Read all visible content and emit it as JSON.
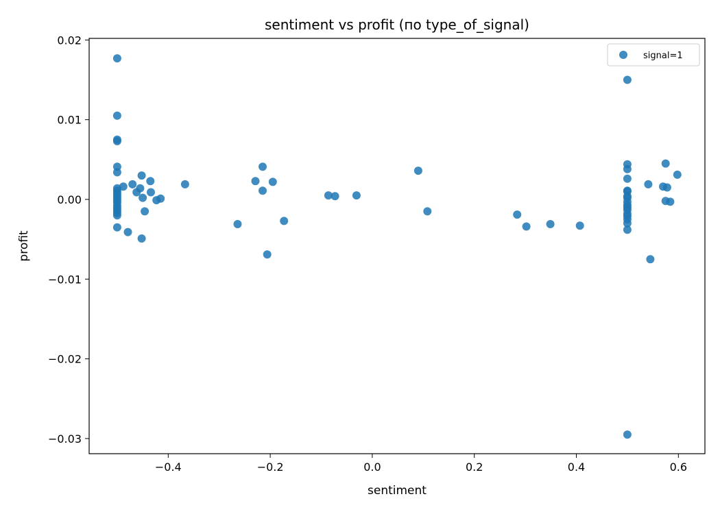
{
  "chart_data": {
    "type": "scatter",
    "title": "sentiment vs profit (по type_of_signal)",
    "xlabel": "sentiment",
    "ylabel": "profit",
    "xlim": [
      -0.555,
      0.652
    ],
    "ylim": [
      -0.0319,
      0.0202
    ],
    "x_ticks": [
      -0.4,
      -0.2,
      0.0,
      0.2,
      0.4,
      0.6
    ],
    "x_tick_labels": [
      "−0.4",
      "−0.2",
      "0.0",
      "0.2",
      "0.4",
      "0.6"
    ],
    "y_ticks": [
      -0.03,
      -0.02,
      -0.01,
      0.0,
      0.01,
      0.02
    ],
    "y_tick_labels": [
      "−0.03",
      "−0.02",
      "−0.01",
      "0.00",
      "0.01",
      "0.02"
    ],
    "grid": false,
    "legend_position": "top-right",
    "colors": {
      "series": "#1f77b4"
    },
    "series": [
      {
        "name": "signal=1",
        "points": [
          [
            -0.5,
            0.0177
          ],
          [
            -0.5,
            0.0105
          ],
          [
            -0.5,
            0.0075
          ],
          [
            -0.5,
            0.0073
          ],
          [
            -0.5,
            0.0041
          ],
          [
            -0.5,
            0.0034
          ],
          [
            -0.5,
            0.0014
          ],
          [
            -0.5,
            0.0011
          ],
          [
            -0.5,
            0.0008
          ],
          [
            -0.5,
            0.0005
          ],
          [
            -0.5,
            0.0002
          ],
          [
            -0.5,
            -0.0001
          ],
          [
            -0.5,
            -0.0004
          ],
          [
            -0.5,
            -0.0008
          ],
          [
            -0.5,
            -0.0011
          ],
          [
            -0.5,
            -0.0014
          ],
          [
            -0.5,
            -0.0017
          ],
          [
            -0.5,
            -0.002
          ],
          [
            -0.5,
            -0.0035
          ],
          [
            -0.488,
            0.0016
          ],
          [
            -0.479,
            -0.0041
          ],
          [
            -0.47,
            0.0019
          ],
          [
            -0.462,
            0.0009
          ],
          [
            -0.455,
            0.0014
          ],
          [
            -0.452,
            0.003
          ],
          [
            -0.45,
            0.0002
          ],
          [
            -0.452,
            -0.0049
          ],
          [
            -0.446,
            -0.0015
          ],
          [
            -0.435,
            0.0023
          ],
          [
            -0.434,
            0.0009
          ],
          [
            -0.423,
            -0.0001
          ],
          [
            -0.415,
            0.0001
          ],
          [
            -0.367,
            0.0019
          ],
          [
            -0.264,
            -0.0031
          ],
          [
            -0.229,
            0.0023
          ],
          [
            -0.215,
            0.0041
          ],
          [
            -0.215,
            0.0011
          ],
          [
            -0.206,
            -0.0069
          ],
          [
            -0.195,
            0.0022
          ],
          [
            -0.173,
            -0.0027
          ],
          [
            -0.086,
            0.0005
          ],
          [
            -0.073,
            0.0004
          ],
          [
            -0.031,
            0.0005
          ],
          [
            0.09,
            0.0036
          ],
          [
            0.108,
            -0.0015
          ],
          [
            0.284,
            -0.0019
          ],
          [
            0.302,
            -0.0034
          ],
          [
            0.349,
            -0.0031
          ],
          [
            0.407,
            -0.0033
          ],
          [
            0.5,
            0.015
          ],
          [
            0.5,
            0.0044
          ],
          [
            0.5,
            0.0038
          ],
          [
            0.5,
            0.0026
          ],
          [
            0.5,
            0.0011
          ],
          [
            0.5,
            0.001
          ],
          [
            0.5,
            0.0004
          ],
          [
            0.5,
            0.0002
          ],
          [
            0.5,
            -0.0003
          ],
          [
            0.5,
            -0.0007
          ],
          [
            0.5,
            -0.001
          ],
          [
            0.5,
            -0.0013
          ],
          [
            0.5,
            -0.0018
          ],
          [
            0.5,
            -0.0021
          ],
          [
            0.5,
            -0.0025
          ],
          [
            0.5,
            -0.003
          ],
          [
            0.5,
            -0.0038
          ],
          [
            0.5,
            -0.0295
          ],
          [
            0.541,
            0.0019
          ],
          [
            0.545,
            -0.0075
          ],
          [
            0.57,
            0.0016
          ],
          [
            0.575,
            0.0045
          ],
          [
            0.575,
            -0.0002
          ],
          [
            0.578,
            0.0015
          ],
          [
            0.584,
            -0.0003
          ],
          [
            0.598,
            0.0031
          ]
        ]
      }
    ]
  }
}
